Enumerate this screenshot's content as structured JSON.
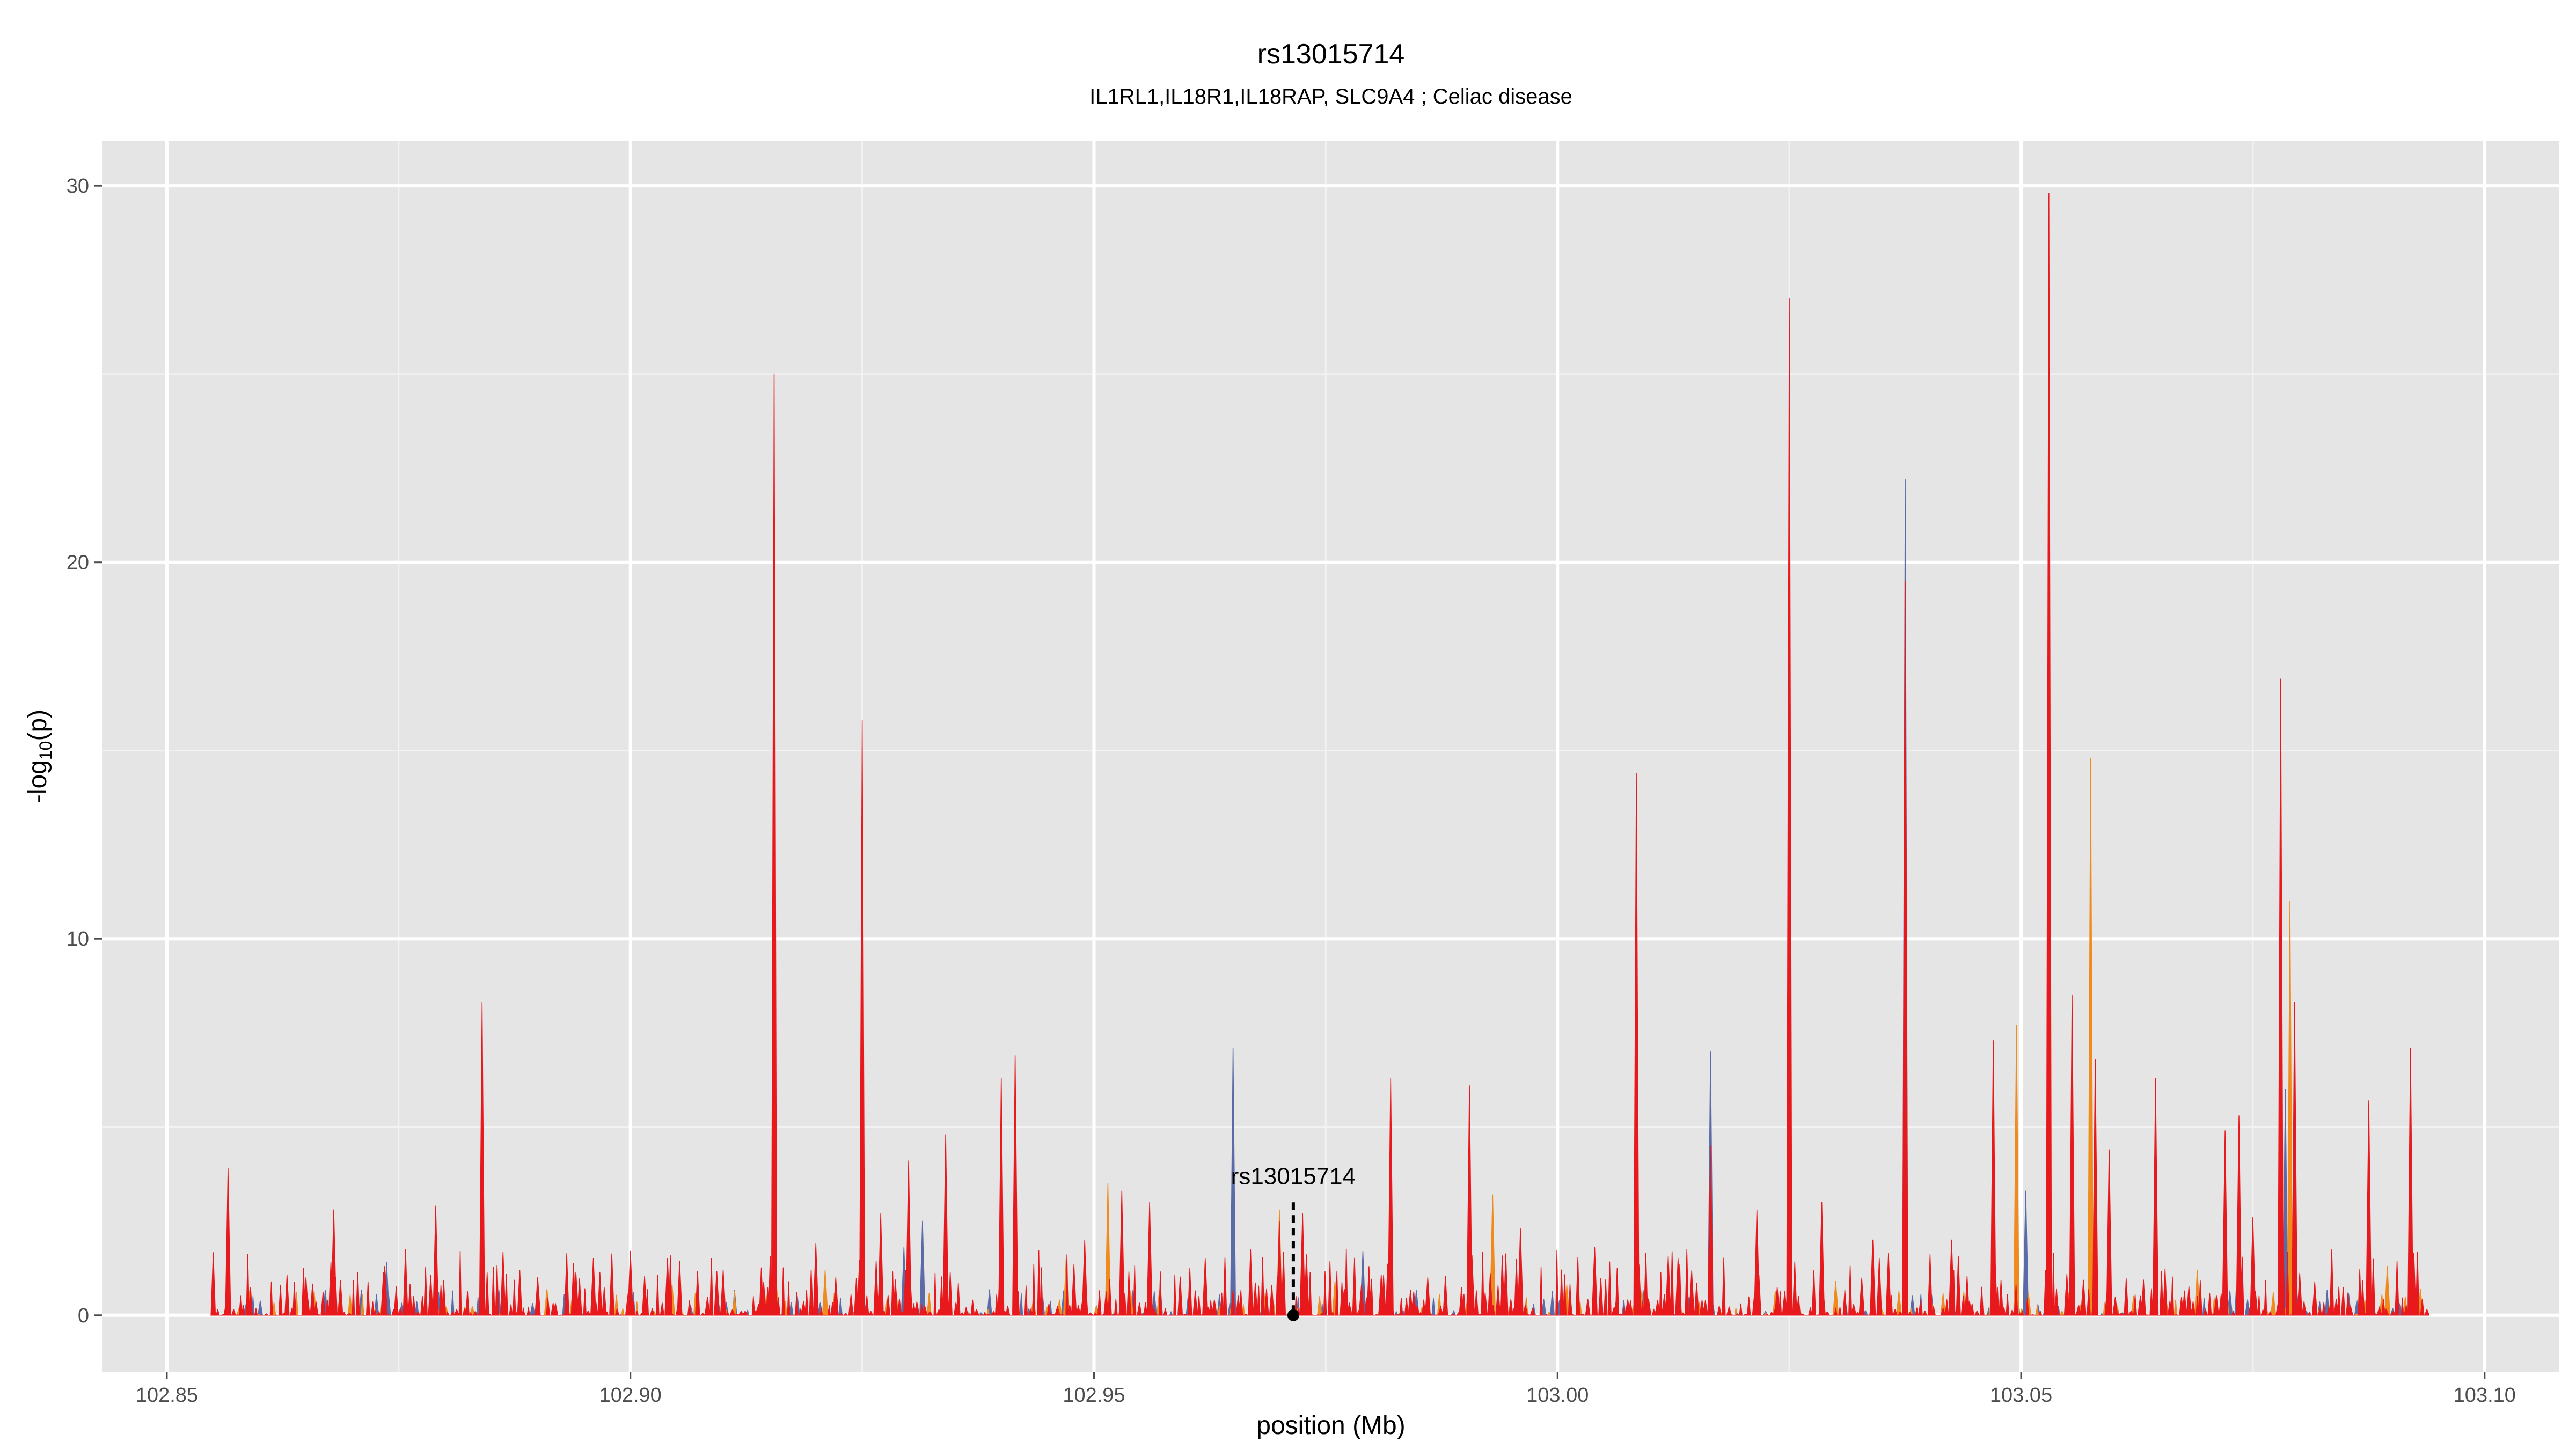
{
  "chart_data": {
    "type": "area",
    "title": "rs13015714",
    "subtitle": "IL1RL1,IL18R1,IL18RAP, SLC9A4 ; Celiac disease",
    "xlabel": "position (Mb)",
    "ylabel_main": "-log",
    "ylabel_sub": "10",
    "ylabel_tail": "(p)",
    "xlim": [
      102.843,
      103.108
    ],
    "ylim": [
      -1.5,
      31.2
    ],
    "x_ticks": [
      102.85,
      102.9,
      102.95,
      103.0,
      103.05,
      103.1
    ],
    "x_tick_labels": [
      "102.85",
      "102.90",
      "102.95",
      "103.00",
      "103.05",
      "103.10"
    ],
    "y_ticks": [
      0,
      10,
      20,
      30
    ],
    "y_tick_labels": [
      "0",
      "10",
      "20",
      "30"
    ],
    "grid": true,
    "panel_background": "#e5e5e5",
    "colors": {
      "red": "#e8191d",
      "orange": "#f08a1c",
      "blue": "#5b6ba8"
    },
    "x_range": [
      102.855,
      103.094
    ],
    "annotation": {
      "label": "rs13015714",
      "x": 102.9715,
      "y": 0,
      "line_top": 3.0
    },
    "series": [
      {
        "color": "#5b6ba8",
        "peaks": [
          [
            102.8737,
            1.4
          ],
          [
            102.9155,
            2.4
          ],
          [
            102.9295,
            1.8
          ],
          [
            102.9315,
            2.5
          ],
          [
            102.965,
            7.1
          ],
          [
            102.979,
            1.7
          ],
          [
            102.993,
            1.2
          ],
          [
            103.0165,
            7.0
          ],
          [
            103.0375,
            22.2
          ],
          [
            103.0505,
            3.3
          ],
          [
            103.0645,
            5.8
          ],
          [
            103.0785,
            6.0
          ]
        ]
      },
      {
        "color": "#f08a1c",
        "peaks": [
          [
            102.891,
            0.7
          ],
          [
            102.9045,
            0.8
          ],
          [
            102.921,
            1.2
          ],
          [
            102.947,
            1.5
          ],
          [
            102.9515,
            3.5
          ],
          [
            102.97,
            2.8
          ],
          [
            102.976,
            0.9
          ],
          [
            102.993,
            3.2
          ],
          [
            103.001,
            0.8
          ],
          [
            103.03,
            0.9
          ],
          [
            103.0495,
            7.7
          ],
          [
            103.0575,
            14.8
          ],
          [
            103.069,
            1.2
          ],
          [
            103.079,
            11.0
          ],
          [
            103.0895,
            1.3
          ]
        ]
      },
      {
        "color": "#e8191d",
        "peaks": [
          [
            102.8566,
            3.9
          ],
          [
            102.865,
            1.0
          ],
          [
            102.868,
            2.8
          ],
          [
            102.8735,
            1.3
          ],
          [
            102.879,
            2.9
          ],
          [
            102.884,
            8.3
          ],
          [
            102.89,
            1.0
          ],
          [
            102.896,
            1.5
          ],
          [
            102.9,
            1.7
          ],
          [
            102.904,
            1.5
          ],
          [
            102.91,
            1.2
          ],
          [
            102.9155,
            25.0
          ],
          [
            102.92,
            1.9
          ],
          [
            102.925,
            15.8
          ],
          [
            102.927,
            2.7
          ],
          [
            102.93,
            4.1
          ],
          [
            102.934,
            4.8
          ],
          [
            102.94,
            6.3
          ],
          [
            102.9415,
            6.9
          ],
          [
            102.949,
            2.0
          ],
          [
            102.953,
            3.3
          ],
          [
            102.956,
            3.0
          ],
          [
            102.962,
            1.5
          ],
          [
            102.97,
            2.5
          ],
          [
            102.9725,
            2.7
          ],
          [
            102.977,
            0.7
          ],
          [
            102.982,
            6.3
          ],
          [
            102.986,
            1.0
          ],
          [
            102.9905,
            6.1
          ],
          [
            102.996,
            2.3
          ],
          [
            103.004,
            1.8
          ],
          [
            103.0085,
            14.4
          ],
          [
            103.013,
            1.5
          ],
          [
            103.0165,
            4.5
          ],
          [
            103.0215,
            2.8
          ],
          [
            103.025,
            27.0
          ],
          [
            103.0285,
            3.0
          ],
          [
            103.034,
            2.0
          ],
          [
            103.0375,
            19.5
          ],
          [
            103.0425,
            2.0
          ],
          [
            103.047,
            7.3
          ],
          [
            103.053,
            29.8
          ],
          [
            103.0555,
            8.5
          ],
          [
            103.058,
            6.8
          ],
          [
            103.0595,
            4.4
          ],
          [
            103.0645,
            6.3
          ],
          [
            103.072,
            4.9
          ],
          [
            103.0735,
            5.3
          ],
          [
            103.075,
            2.6
          ],
          [
            103.078,
            16.9
          ],
          [
            103.0795,
            8.3
          ],
          [
            103.0875,
            5.7
          ],
          [
            103.092,
            7.1
          ]
        ]
      }
    ]
  }
}
